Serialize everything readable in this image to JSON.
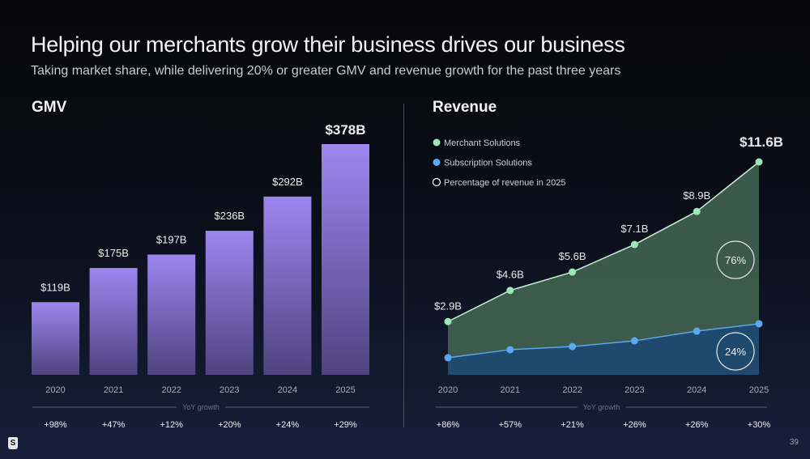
{
  "header": {
    "title": "Helping our merchants grow their business drives our business",
    "subtitle": "Taking market share, while delivering 20% or greater GMV and revenue growth for the past three years"
  },
  "footer": {
    "page_number": "39",
    "logo": "shopify-bag-icon"
  },
  "colors": {
    "gmv_bar_top": "#9d86ef",
    "gmv_bar_bottom": "#4f437f",
    "merchant": "#9ce8b4",
    "merchant_fill": "#3f5f4e",
    "subscription": "#5aa8ee",
    "subscription_fill": "#1f4a6e"
  },
  "chart_data": [
    {
      "type": "bar",
      "title": "GMV",
      "categories": [
        "2020",
        "2021",
        "2022",
        "2023",
        "2024",
        "2025"
      ],
      "values": [
        119,
        175,
        197,
        236,
        292,
        378
      ],
      "data_labels": [
        "$119B",
        "$175B",
        "$197B",
        "$236B",
        "$292B",
        "$378B"
      ],
      "units": "B USD",
      "ylim": [
        0,
        378
      ],
      "growth_label": "YoY growth",
      "growth": [
        "+98%",
        "+47%",
        "+12%",
        "+20%",
        "+24%",
        "+29%"
      ]
    },
    {
      "type": "area",
      "title": "Revenue",
      "categories": [
        "2020",
        "2021",
        "2022",
        "2023",
        "2024",
        "2025"
      ],
      "legend": [
        "Merchant Solutions",
        "Subscription Solutions",
        "Percentage of revenue in 2025"
      ],
      "legend_position": "top-left",
      "series": [
        {
          "name": "Total revenue (Merchant + Subscription)",
          "values": [
            2.9,
            4.6,
            5.6,
            7.1,
            8.9,
            11.6
          ]
        },
        {
          "name": "Subscription Solutions",
          "values": [
            0.93,
            1.37,
            1.54,
            1.85,
            2.38,
            2.78
          ]
        }
      ],
      "data_labels": [
        "$2.9B",
        "$4.6B",
        "$5.6B",
        "$7.1B",
        "$8.9B",
        "$11.6B"
      ],
      "share_2025": {
        "merchant": "76%",
        "subscription": "24%"
      },
      "units": "B USD",
      "ylim": [
        0,
        11.6
      ],
      "growth_label": "YoY growth",
      "growth": [
        "+86%",
        "+57%",
        "+21%",
        "+26%",
        "+26%",
        "+30%"
      ]
    }
  ]
}
